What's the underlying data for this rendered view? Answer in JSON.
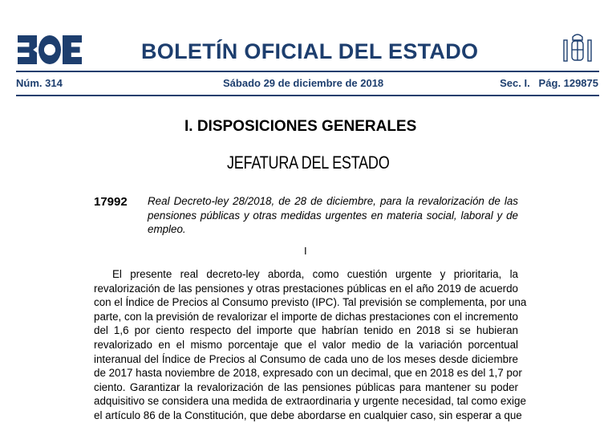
{
  "header": {
    "logo_text": "BOE",
    "title": "BOLETÍN OFICIAL DEL ESTADO",
    "number": "Núm. 314",
    "date": "Sábado 29 de diciembre de 2018",
    "section_page": "Sec. I.   Pág. 129875",
    "brand_color": "#1d3e6e"
  },
  "section": "I. DISPOSICIONES GENERALES",
  "department": "JEFATURA DEL ESTADO",
  "entry": {
    "number": "17992",
    "summary_lines": [
      "Real Decreto-ley 28/2018, de 28 de diciembre, para la revalorización de las",
      "pensiones públicas y otras medidas urgentes en materia social, laboral y de",
      "empleo."
    ]
  },
  "part": "I",
  "body_lines": [
    "El presente real decreto-ley aborda, como cuestión urgente y prioritaria, la",
    "revalorización de las pensiones y otras prestaciones públicas en el año 2019 de acuerdo",
    "con el Índice de Precios al Consumo previsto (IPC). Tal previsión se complementa, por una",
    "parte, con la previsión de revalorizar el importe de dichas prestaciones con el incremento",
    "del 1,6 por ciento respecto del importe que habrían tenido en 2018 si se hubieran",
    "revalorizado en el mismo porcentaje que el valor medio de la variación porcentual",
    "interanual del Índice de Precios al Consumo de cada uno de los meses desde diciembre",
    "de 2017 hasta noviembre de 2018, expresado con un decimal, que en 2018 es del 1,7 por",
    "ciento. Garantizar la revalorización de las pensiones públicas para mantener su poder",
    "adquisitivo se considera una medida de extraordinaria y urgente necesidad, tal como exige",
    "el artículo 86 de la Constitución, que debe abordarse en cualquier caso, sin esperar a que"
  ]
}
